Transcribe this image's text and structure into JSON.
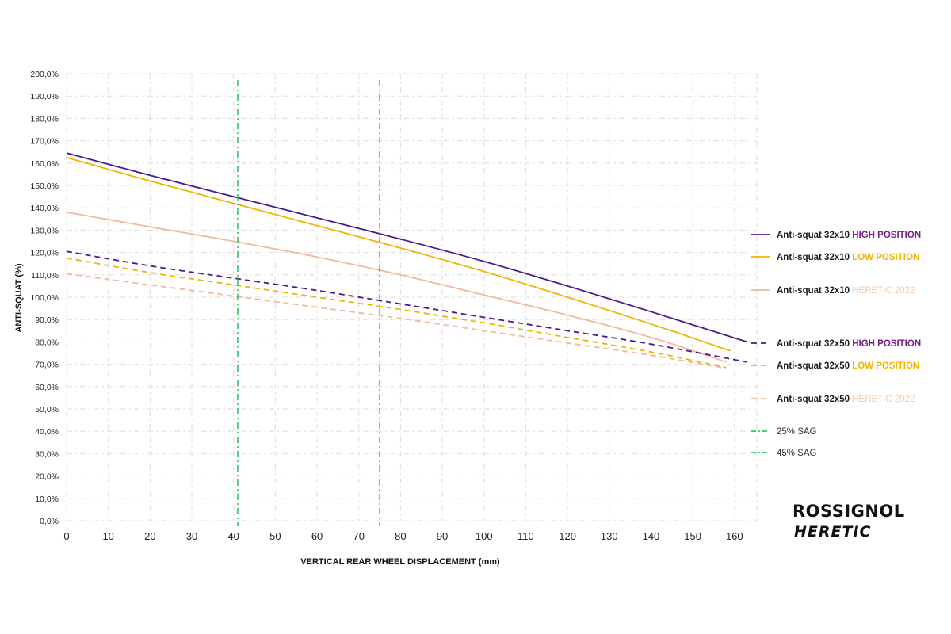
{
  "chart_data": {
    "type": "line",
    "xlabel": "VERTICAL REAR WHEEL DISPLACEMENT (mm)",
    "ylabel": "ANTI-SQUAT (%)",
    "xlim": [
      0,
      165
    ],
    "ylim": [
      0,
      200
    ],
    "x_ticks": [
      "0",
      "10",
      "20",
      "30",
      "40",
      "50",
      "60",
      "70",
      "80",
      "90",
      "100",
      "110",
      "120",
      "130",
      "140",
      "150",
      "160"
    ],
    "y_ticks": [
      "0,0%",
      "10,0%",
      "20,0%",
      "30,0%",
      "40,0%",
      "50,0%",
      "60,0%",
      "70,0%",
      "80,0%",
      "90,0%",
      "100,0%",
      "110,0%",
      "120,0%",
      "130,0%",
      "140,0%",
      "150,0%",
      "160,0%",
      "170,0%",
      "180,0%",
      "190,0%",
      "200,0%"
    ],
    "grid": true,
    "legend_position": "right",
    "series": [
      {
        "name": "Anti-squat 32x10 HIGH POSITION",
        "label": "Anti-squat 32x10",
        "tag": "HIGH POSITION",
        "tag_color": "#7a1f8a",
        "color": "#4b1a8a",
        "style": "solid",
        "x": [
          0,
          20,
          40,
          60,
          80,
          100,
          120,
          140,
          163
        ],
        "y": [
          164.5,
          154.5,
          145,
          135.5,
          126,
          116,
          105,
          93.5,
          80
        ]
      },
      {
        "name": "Anti-squat 32x10 LOW POSITION",
        "label": "Anti-squat 32x10",
        "tag": "LOW POSITION",
        "tag_color": "#f2b400",
        "color": "#f2b400",
        "style": "solid",
        "x": [
          0,
          20,
          40,
          60,
          80,
          100,
          120,
          140,
          159
        ],
        "y": [
          162.5,
          152,
          142,
          132,
          122,
          111.5,
          100,
          88,
          76
        ]
      },
      {
        "name": "Anti-squat 32x10 HERETIC 2022",
        "label": "Anti-squat 32x10",
        "tag": "HERETIC 2022",
        "tag_color": "#f3c9a8",
        "color": "#f0b99c",
        "style": "solid",
        "x": [
          0,
          20,
          40,
          60,
          80,
          100,
          120,
          140,
          158
        ],
        "y": [
          138,
          131.5,
          125,
          118,
          110,
          101,
          92,
          82,
          71
        ]
      },
      {
        "name": "Anti-squat 32x50 HIGH POSITION",
        "label": "Anti-squat 32x50",
        "tag": "HIGH POSITION",
        "tag_color": "#7a1f8a",
        "color": "#4b1a8a",
        "style": "dashed",
        "x": [
          0,
          20,
          40,
          60,
          80,
          100,
          120,
          140,
          163
        ],
        "y": [
          120.5,
          114,
          108.5,
          103,
          97,
          91,
          85,
          79,
          71
        ]
      },
      {
        "name": "Anti-squat 32x50 LOW POSITION",
        "label": "Anti-squat 32x50",
        "tag": "LOW POSITION",
        "tag_color": "#f2b400",
        "color": "#f2b400",
        "style": "dashed",
        "x": [
          0,
          20,
          40,
          60,
          80,
          100,
          120,
          140,
          158
        ],
        "y": [
          117.5,
          111,
          105.5,
          100,
          94.5,
          88.5,
          82,
          75.5,
          68.5
        ]
      },
      {
        "name": "Anti-squat 32x50 HERETIC 2022",
        "label": "Anti-squat 32x50",
        "tag": "HERETIC 2022",
        "tag_color": "#f3c9a8",
        "color": "#f0b99c",
        "style": "dashed",
        "x": [
          0,
          20,
          40,
          60,
          80,
          100,
          120,
          140,
          157
        ],
        "y": [
          110.5,
          105.5,
          100.5,
          95.5,
          90.5,
          85,
          79.5,
          74,
          68.5
        ]
      }
    ],
    "vlines": [
      {
        "name": "25% SAG",
        "x": 41,
        "color": "#2fc46b",
        "style": "dashdot"
      },
      {
        "name": "45% SAG",
        "x": 75,
        "color": "#2fc46b",
        "style": "dashdot"
      }
    ]
  },
  "brand": {
    "line1": "ROSSIGNOL",
    "line2": "HERETIC"
  }
}
